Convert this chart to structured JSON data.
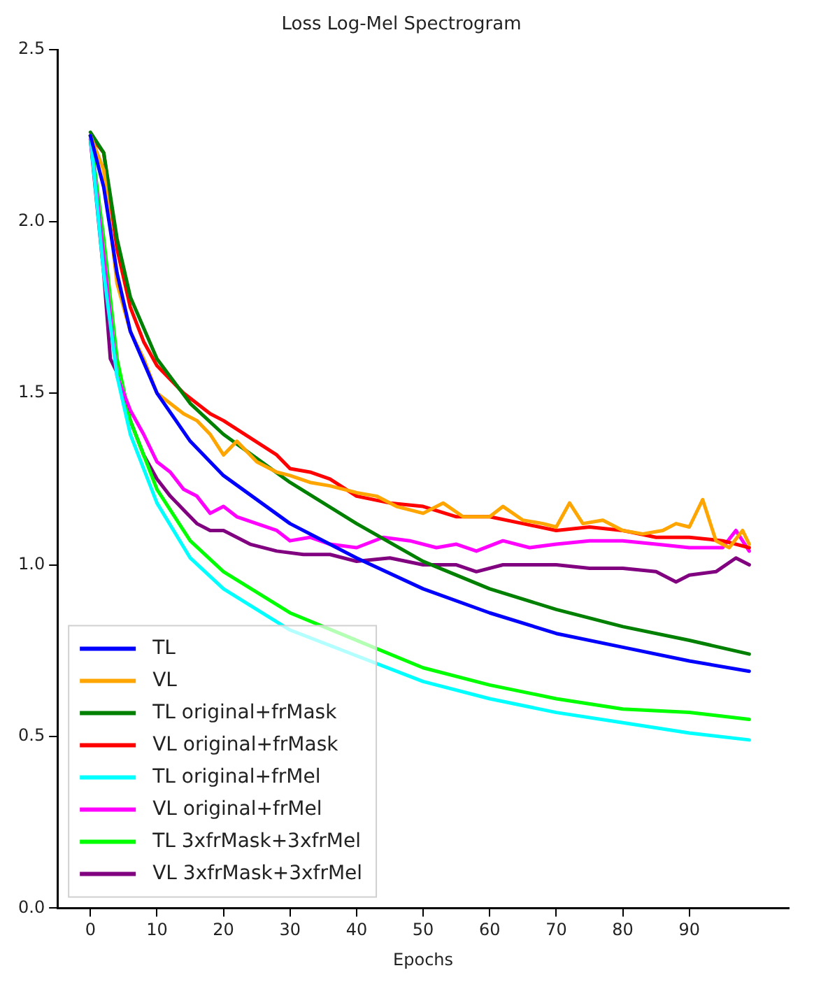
{
  "chart_data": {
    "type": "line",
    "title": "Loss Log-Mel Spectrogram",
    "xlabel": "Epochs",
    "xlim": [
      -4.95,
      104.95
    ],
    "xticks": [
      0,
      10,
      20,
      30,
      40,
      50,
      60,
      70,
      80,
      90
    ],
    "ylim": [
      0,
      2.5
    ],
    "yticks": [
      {
        "value": 0,
        "label": "0.0"
      },
      {
        "value": 0.5,
        "label": "0.5"
      },
      {
        "value": 1,
        "label": "1.0"
      },
      {
        "value": 1.5,
        "label": "1.5"
      },
      {
        "value": 2,
        "label": "2.0"
      },
      {
        "value": 2.5,
        "label": "2.5"
      }
    ],
    "grid": false,
    "legend": "bottom left",
    "marker": "none",
    "line_style": "solid",
    "series": [
      {
        "name": "TL",
        "color": "#0000ff",
        "x": [
          0,
          2,
          4,
          6,
          10,
          15,
          20,
          30,
          40,
          50,
          60,
          70,
          80,
          90,
          99
        ],
        "values": [
          2.25,
          2.1,
          1.85,
          1.68,
          1.5,
          1.36,
          1.26,
          1.12,
          1.02,
          0.93,
          0.86,
          0.8,
          0.76,
          0.72,
          0.69
        ]
      },
      {
        "name": "VL",
        "color": "#ffa500",
        "x": [
          0,
          2,
          4,
          6,
          8,
          10,
          12,
          14,
          16,
          18,
          20,
          22,
          25,
          28,
          30,
          33,
          36,
          40,
          43,
          46,
          50,
          53,
          56,
          60,
          62,
          65,
          68,
          70,
          72,
          74,
          77,
          80,
          83,
          86,
          88,
          90,
          92,
          94,
          96,
          98,
          99
        ],
        "values": [
          2.25,
          2.15,
          1.82,
          1.68,
          1.6,
          1.5,
          1.47,
          1.44,
          1.42,
          1.38,
          1.32,
          1.36,
          1.3,
          1.27,
          1.26,
          1.24,
          1.23,
          1.21,
          1.2,
          1.17,
          1.15,
          1.18,
          1.14,
          1.14,
          1.17,
          1.13,
          1.12,
          1.11,
          1.18,
          1.12,
          1.13,
          1.1,
          1.09,
          1.1,
          1.12,
          1.11,
          1.19,
          1.07,
          1.05,
          1.1,
          1.06
        ]
      },
      {
        "name": "TL original+frMask",
        "color": "#008000",
        "x": [
          0,
          2,
          4,
          6,
          10,
          15,
          20,
          30,
          40,
          50,
          60,
          70,
          80,
          90,
          99
        ],
        "values": [
          2.26,
          2.2,
          1.95,
          1.78,
          1.6,
          1.47,
          1.38,
          1.24,
          1.12,
          1.01,
          0.93,
          0.87,
          0.82,
          0.78,
          0.74
        ]
      },
      {
        "name": "VL original+frMask",
        "color": "#ff0000",
        "x": [
          0,
          2,
          4,
          6,
          8,
          10,
          14,
          18,
          20,
          24,
          28,
          30,
          33,
          36,
          40,
          45,
          50,
          55,
          60,
          65,
          70,
          75,
          80,
          85,
          90,
          95,
          99
        ],
        "values": [
          2.25,
          2.2,
          1.92,
          1.75,
          1.65,
          1.58,
          1.5,
          1.44,
          1.42,
          1.37,
          1.32,
          1.28,
          1.27,
          1.25,
          1.2,
          1.18,
          1.17,
          1.14,
          1.14,
          1.12,
          1.1,
          1.11,
          1.1,
          1.08,
          1.08,
          1.07,
          1.05
        ]
      },
      {
        "name": "TL original+frMel",
        "color": "#00ffff",
        "x": [
          0,
          2,
          4,
          6,
          10,
          15,
          20,
          30,
          50,
          60,
          70,
          80,
          90,
          99
        ],
        "values": [
          2.25,
          1.85,
          1.55,
          1.38,
          1.18,
          1.02,
          0.93,
          0.81,
          0.66,
          0.61,
          0.57,
          0.54,
          0.51,
          0.49
        ]
      },
      {
        "name": "VL original+frMel",
        "color": "#ff00ff",
        "x": [
          0,
          2,
          4,
          6,
          8,
          10,
          12,
          14,
          16,
          18,
          20,
          22,
          25,
          28,
          30,
          33,
          36,
          40,
          44,
          48,
          52,
          55,
          58,
          62,
          66,
          70,
          75,
          80,
          85,
          90,
          95,
          97,
          99
        ],
        "values": [
          2.24,
          1.9,
          1.55,
          1.45,
          1.38,
          1.3,
          1.27,
          1.22,
          1.2,
          1.15,
          1.17,
          1.14,
          1.12,
          1.1,
          1.07,
          1.08,
          1.06,
          1.05,
          1.08,
          1.07,
          1.05,
          1.06,
          1.04,
          1.07,
          1.05,
          1.06,
          1.07,
          1.07,
          1.06,
          1.05,
          1.05,
          1.1,
          1.04
        ]
      },
      {
        "name": "TL 3xfrMask+3xfrMel",
        "color": "#00ff00",
        "x": [
          0,
          2,
          4,
          6,
          10,
          15,
          20,
          30,
          50,
          60,
          70,
          80,
          90,
          99
        ],
        "values": [
          2.25,
          1.95,
          1.6,
          1.42,
          1.22,
          1.07,
          0.98,
          0.86,
          0.7,
          0.65,
          0.61,
          0.58,
          0.57,
          0.55
        ]
      },
      {
        "name": "VL 3xfrMask+3xfrMel",
        "color": "#800080",
        "x": [
          0,
          2,
          3,
          4,
          6,
          8,
          10,
          12,
          14,
          16,
          18,
          20,
          24,
          28,
          32,
          36,
          40,
          45,
          50,
          55,
          58,
          62,
          66,
          70,
          75,
          80,
          85,
          88,
          90,
          94,
          97,
          99
        ],
        "values": [
          2.24,
          1.85,
          1.6,
          1.56,
          1.42,
          1.32,
          1.25,
          1.2,
          1.16,
          1.12,
          1.1,
          1.1,
          1.06,
          1.04,
          1.03,
          1.03,
          1.01,
          1.02,
          1.0,
          1.0,
          0.98,
          1.0,
          1.0,
          1.0,
          0.99,
          0.99,
          0.98,
          0.95,
          0.97,
          0.98,
          1.02,
          1.0
        ]
      }
    ]
  }
}
